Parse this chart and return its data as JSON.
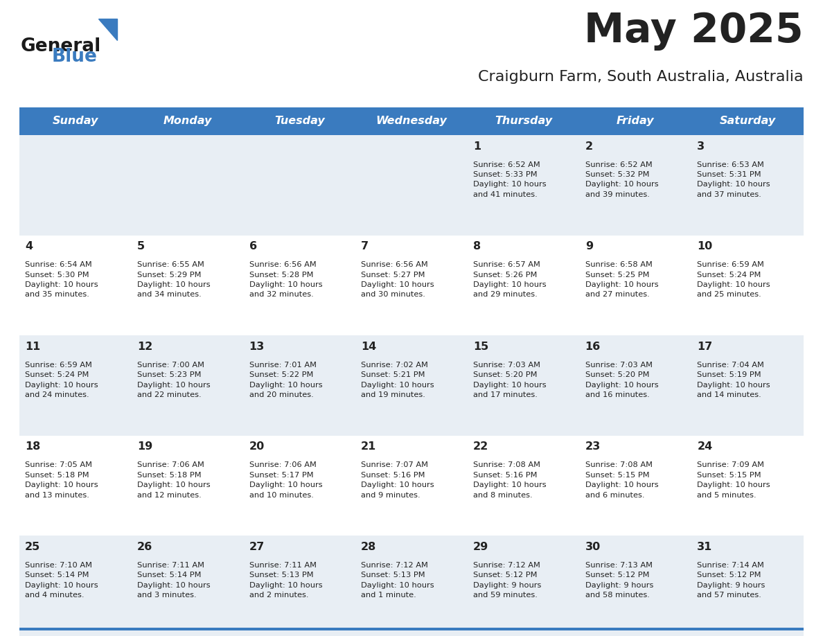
{
  "title": "May 2025",
  "subtitle": "Craigburn Farm, South Australia, Australia",
  "header_color": "#3a7bbf",
  "header_text_color": "#ffffff",
  "cell_bg_light": "#e8eef4",
  "cell_bg_white": "#ffffff",
  "separator_color": "#3a7bbf",
  "text_color": "#222222",
  "days_of_week": [
    "Sunday",
    "Monday",
    "Tuesday",
    "Wednesday",
    "Thursday",
    "Friday",
    "Saturday"
  ],
  "weeks": [
    [
      {
        "day": "",
        "info": ""
      },
      {
        "day": "",
        "info": ""
      },
      {
        "day": "",
        "info": ""
      },
      {
        "day": "",
        "info": ""
      },
      {
        "day": "1",
        "info": "Sunrise: 6:52 AM\nSunset: 5:33 PM\nDaylight: 10 hours\nand 41 minutes."
      },
      {
        "day": "2",
        "info": "Sunrise: 6:52 AM\nSunset: 5:32 PM\nDaylight: 10 hours\nand 39 minutes."
      },
      {
        "day": "3",
        "info": "Sunrise: 6:53 AM\nSunset: 5:31 PM\nDaylight: 10 hours\nand 37 minutes."
      }
    ],
    [
      {
        "day": "4",
        "info": "Sunrise: 6:54 AM\nSunset: 5:30 PM\nDaylight: 10 hours\nand 35 minutes."
      },
      {
        "day": "5",
        "info": "Sunrise: 6:55 AM\nSunset: 5:29 PM\nDaylight: 10 hours\nand 34 minutes."
      },
      {
        "day": "6",
        "info": "Sunrise: 6:56 AM\nSunset: 5:28 PM\nDaylight: 10 hours\nand 32 minutes."
      },
      {
        "day": "7",
        "info": "Sunrise: 6:56 AM\nSunset: 5:27 PM\nDaylight: 10 hours\nand 30 minutes."
      },
      {
        "day": "8",
        "info": "Sunrise: 6:57 AM\nSunset: 5:26 PM\nDaylight: 10 hours\nand 29 minutes."
      },
      {
        "day": "9",
        "info": "Sunrise: 6:58 AM\nSunset: 5:25 PM\nDaylight: 10 hours\nand 27 minutes."
      },
      {
        "day": "10",
        "info": "Sunrise: 6:59 AM\nSunset: 5:24 PM\nDaylight: 10 hours\nand 25 minutes."
      }
    ],
    [
      {
        "day": "11",
        "info": "Sunrise: 6:59 AM\nSunset: 5:24 PM\nDaylight: 10 hours\nand 24 minutes."
      },
      {
        "day": "12",
        "info": "Sunrise: 7:00 AM\nSunset: 5:23 PM\nDaylight: 10 hours\nand 22 minutes."
      },
      {
        "day": "13",
        "info": "Sunrise: 7:01 AM\nSunset: 5:22 PM\nDaylight: 10 hours\nand 20 minutes."
      },
      {
        "day": "14",
        "info": "Sunrise: 7:02 AM\nSunset: 5:21 PM\nDaylight: 10 hours\nand 19 minutes."
      },
      {
        "day": "15",
        "info": "Sunrise: 7:03 AM\nSunset: 5:20 PM\nDaylight: 10 hours\nand 17 minutes."
      },
      {
        "day": "16",
        "info": "Sunrise: 7:03 AM\nSunset: 5:20 PM\nDaylight: 10 hours\nand 16 minutes."
      },
      {
        "day": "17",
        "info": "Sunrise: 7:04 AM\nSunset: 5:19 PM\nDaylight: 10 hours\nand 14 minutes."
      }
    ],
    [
      {
        "day": "18",
        "info": "Sunrise: 7:05 AM\nSunset: 5:18 PM\nDaylight: 10 hours\nand 13 minutes."
      },
      {
        "day": "19",
        "info": "Sunrise: 7:06 AM\nSunset: 5:18 PM\nDaylight: 10 hours\nand 12 minutes."
      },
      {
        "day": "20",
        "info": "Sunrise: 7:06 AM\nSunset: 5:17 PM\nDaylight: 10 hours\nand 10 minutes."
      },
      {
        "day": "21",
        "info": "Sunrise: 7:07 AM\nSunset: 5:16 PM\nDaylight: 10 hours\nand 9 minutes."
      },
      {
        "day": "22",
        "info": "Sunrise: 7:08 AM\nSunset: 5:16 PM\nDaylight: 10 hours\nand 8 minutes."
      },
      {
        "day": "23",
        "info": "Sunrise: 7:08 AM\nSunset: 5:15 PM\nDaylight: 10 hours\nand 6 minutes."
      },
      {
        "day": "24",
        "info": "Sunrise: 7:09 AM\nSunset: 5:15 PM\nDaylight: 10 hours\nand 5 minutes."
      }
    ],
    [
      {
        "day": "25",
        "info": "Sunrise: 7:10 AM\nSunset: 5:14 PM\nDaylight: 10 hours\nand 4 minutes."
      },
      {
        "day": "26",
        "info": "Sunrise: 7:11 AM\nSunset: 5:14 PM\nDaylight: 10 hours\nand 3 minutes."
      },
      {
        "day": "27",
        "info": "Sunrise: 7:11 AM\nSunset: 5:13 PM\nDaylight: 10 hours\nand 2 minutes."
      },
      {
        "day": "28",
        "info": "Sunrise: 7:12 AM\nSunset: 5:13 PM\nDaylight: 10 hours\nand 1 minute."
      },
      {
        "day": "29",
        "info": "Sunrise: 7:12 AM\nSunset: 5:12 PM\nDaylight: 9 hours\nand 59 minutes."
      },
      {
        "day": "30",
        "info": "Sunrise: 7:13 AM\nSunset: 5:12 PM\nDaylight: 9 hours\nand 58 minutes."
      },
      {
        "day": "31",
        "info": "Sunrise: 7:14 AM\nSunset: 5:12 PM\nDaylight: 9 hours\nand 57 minutes."
      }
    ]
  ],
  "logo_color_general": "#1a1a1a",
  "logo_color_blue": "#3a7bbf"
}
